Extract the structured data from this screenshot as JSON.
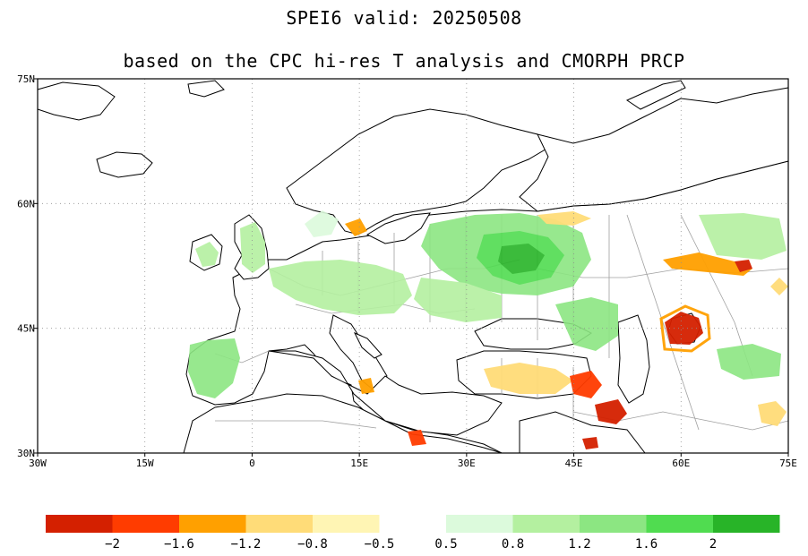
{
  "title": {
    "line1": "SPEI6  valid: 20250508",
    "line2": "based on the CPC hi-res T analysis and CMORPH PRCP"
  },
  "map": {
    "lon_range": [
      -30,
      75
    ],
    "lat_range": [
      30,
      75
    ],
    "x_ticks": [
      "30W",
      "15W",
      "0",
      "15E",
      "30E",
      "45E",
      "60E",
      "75E"
    ],
    "y_ticks": [
      "75N",
      "60N",
      "45N",
      "30N"
    ],
    "gridlines": true
  },
  "legend": {
    "dry_colors": [
      "#d42000",
      "#ff3c00",
      "#ffa000",
      "#ffdc78",
      "#fff5b4"
    ],
    "wet_colors": [
      "#dcfadc",
      "#b4f0a0",
      "#8ce682",
      "#50dc50",
      "#28b428"
    ],
    "dry_labels": [
      "−2",
      "−1.6",
      "−1.2",
      "−0.8",
      "−0.5"
    ],
    "wet_labels": [
      "0.5",
      "0.8",
      "1.2",
      "1.6",
      "2"
    ]
  },
  "chart_data": {
    "type": "heatmap",
    "title": "SPEI6  valid: 20250508",
    "subtitle": "based on the CPC hi-res T analysis and CMORPH PRCP",
    "xlabel": "",
    "ylabel": "",
    "xlim": [
      -30,
      75
    ],
    "ylim": [
      30,
      75
    ],
    "color_bins": [
      -2,
      -1.6,
      -1.2,
      -0.8,
      -0.5,
      0.5,
      0.8,
      1.2,
      1.6,
      2
    ]
  }
}
